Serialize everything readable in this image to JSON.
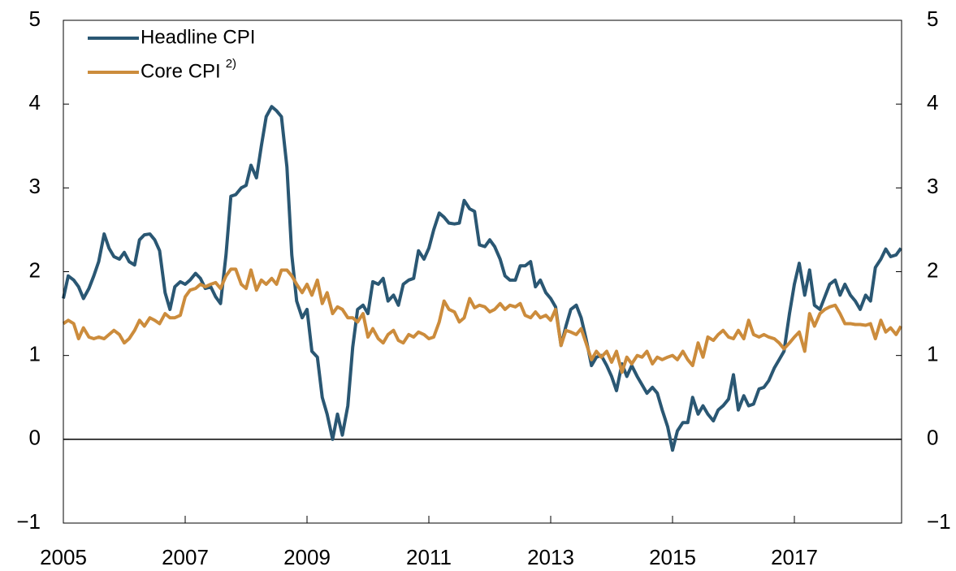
{
  "chart_data": {
    "type": "line",
    "x": [
      2005,
      2005.08,
      2005.17,
      2005.25,
      2005.33,
      2005.42,
      2005.5,
      2005.58,
      2005.67,
      2005.75,
      2005.83,
      2005.92,
      2006,
      2006.08,
      2006.17,
      2006.25,
      2006.33,
      2006.42,
      2006.5,
      2006.58,
      2006.67,
      2006.75,
      2006.83,
      2006.92,
      2007,
      2007.08,
      2007.17,
      2007.25,
      2007.33,
      2007.42,
      2007.5,
      2007.58,
      2007.67,
      2007.75,
      2007.83,
      2007.92,
      2008,
      2008.08,
      2008.17,
      2008.25,
      2008.33,
      2008.42,
      2008.5,
      2008.58,
      2008.67,
      2008.75,
      2008.83,
      2008.92,
      2009,
      2009.08,
      2009.17,
      2009.25,
      2009.33,
      2009.42,
      2009.5,
      2009.58,
      2009.67,
      2009.75,
      2009.83,
      2009.92,
      2010,
      2010.08,
      2010.17,
      2010.25,
      2010.33,
      2010.42,
      2010.5,
      2010.58,
      2010.67,
      2010.75,
      2010.83,
      2010.92,
      2011,
      2011.08,
      2011.17,
      2011.25,
      2011.33,
      2011.42,
      2011.5,
      2011.58,
      2011.67,
      2011.75,
      2011.83,
      2011.92,
      2012,
      2012.08,
      2012.17,
      2012.25,
      2012.33,
      2012.42,
      2012.5,
      2012.58,
      2012.67,
      2012.75,
      2012.83,
      2012.92,
      2013,
      2013.08,
      2013.17,
      2013.25,
      2013.33,
      2013.42,
      2013.5,
      2013.58,
      2013.67,
      2013.75,
      2013.83,
      2013.92,
      2014,
      2014.08,
      2014.17,
      2014.25,
      2014.33,
      2014.42,
      2014.5,
      2014.58,
      2014.67,
      2014.75,
      2014.83,
      2014.92,
      2015,
      2015.08,
      2015.17,
      2015.25,
      2015.33,
      2015.42,
      2015.5,
      2015.58,
      2015.67,
      2015.75,
      2015.83,
      2015.92,
      2016,
      2016.08,
      2016.17,
      2016.25,
      2016.33,
      2016.42,
      2016.5,
      2016.58,
      2016.67,
      2016.75,
      2016.83,
      2016.92,
      2017,
      2017.08,
      2017.17,
      2017.25,
      2017.33,
      2017.42,
      2017.5,
      2017.58,
      2017.67,
      2017.75,
      2017.83,
      2017.92,
      2018,
      2018.08,
      2018.17,
      2018.25,
      2018.33,
      2018.42,
      2018.5,
      2018.58,
      2018.67,
      2018.75
    ],
    "series": [
      {
        "name": "Headline CPI",
        "color": "#2a5773",
        "values": [
          1.68,
          1.95,
          1.9,
          1.82,
          1.68,
          1.8,
          1.95,
          2.12,
          2.45,
          2.28,
          2.18,
          2.15,
          2.23,
          2.12,
          2.08,
          2.38,
          2.44,
          2.45,
          2.38,
          2.25,
          1.75,
          1.55,
          1.82,
          1.88,
          1.85,
          1.9,
          1.98,
          1.92,
          1.8,
          1.82,
          1.7,
          1.62,
          2.2,
          2.9,
          2.92,
          3.0,
          3.03,
          3.27,
          3.12,
          3.5,
          3.85,
          3.97,
          3.92,
          3.85,
          3.25,
          2.2,
          1.65,
          1.45,
          1.55,
          1.05,
          0.98,
          0.5,
          0.3,
          0.0,
          0.3,
          0.05,
          0.4,
          1.1,
          1.55,
          1.6,
          1.5,
          1.88,
          1.85,
          1.92,
          1.65,
          1.72,
          1.6,
          1.85,
          1.9,
          1.92,
          2.25,
          2.15,
          2.28,
          2.5,
          2.7,
          2.65,
          2.58,
          2.57,
          2.58,
          2.85,
          2.75,
          2.72,
          2.32,
          2.3,
          2.38,
          2.3,
          2.15,
          1.95,
          1.9,
          1.9,
          2.07,
          2.07,
          2.12,
          1.82,
          1.9,
          1.75,
          1.68,
          1.58,
          1.12,
          1.35,
          1.55,
          1.6,
          1.45,
          1.2,
          0.88,
          0.98,
          1.0,
          0.88,
          0.75,
          0.58,
          0.9,
          0.75,
          0.88,
          0.75,
          0.65,
          0.55,
          0.62,
          0.55,
          0.35,
          0.15,
          -0.13,
          0.1,
          0.2,
          0.2,
          0.5,
          0.3,
          0.4,
          0.3,
          0.22,
          0.35,
          0.4,
          0.48,
          0.77,
          0.35,
          0.52,
          0.4,
          0.42,
          0.6,
          0.62,
          0.7,
          0.85,
          0.95,
          1.05,
          1.5,
          1.85,
          2.1,
          1.72,
          2.02,
          1.6,
          1.55,
          1.7,
          1.85,
          1.9,
          1.72,
          1.85,
          1.72,
          1.65,
          1.55,
          1.72,
          1.65,
          2.05,
          2.15,
          2.27,
          2.18,
          2.2,
          2.28
        ]
      },
      {
        "name": "Core CPI",
        "name_note": "2)",
        "color": "#cc8c3c",
        "values": [
          1.38,
          1.42,
          1.38,
          1.2,
          1.33,
          1.22,
          1.2,
          1.22,
          1.2,
          1.25,
          1.3,
          1.25,
          1.15,
          1.2,
          1.3,
          1.42,
          1.35,
          1.45,
          1.42,
          1.38,
          1.5,
          1.45,
          1.45,
          1.48,
          1.7,
          1.78,
          1.8,
          1.85,
          1.82,
          1.85,
          1.87,
          1.8,
          1.95,
          2.03,
          2.03,
          1.85,
          1.8,
          2.02,
          1.78,
          1.9,
          1.85,
          1.92,
          1.85,
          2.02,
          2.02,
          1.95,
          1.85,
          1.75,
          1.85,
          1.72,
          1.9,
          1.62,
          1.75,
          1.5,
          1.58,
          1.55,
          1.45,
          1.45,
          1.4,
          1.5,
          1.22,
          1.32,
          1.2,
          1.15,
          1.25,
          1.3,
          1.18,
          1.15,
          1.25,
          1.22,
          1.28,
          1.25,
          1.2,
          1.22,
          1.4,
          1.65,
          1.55,
          1.52,
          1.4,
          1.45,
          1.68,
          1.57,
          1.6,
          1.58,
          1.52,
          1.55,
          1.62,
          1.55,
          1.6,
          1.58,
          1.62,
          1.48,
          1.45,
          1.52,
          1.45,
          1.48,
          1.42,
          1.55,
          1.12,
          1.3,
          1.28,
          1.25,
          1.32,
          1.15,
          0.95,
          1.05,
          0.98,
          1.05,
          0.92,
          1.05,
          0.8,
          0.98,
          0.9,
          1.0,
          0.98,
          1.05,
          0.9,
          0.98,
          0.95,
          0.98,
          1.0,
          0.95,
          1.05,
          0.95,
          0.88,
          1.15,
          0.98,
          1.22,
          1.18,
          1.25,
          1.3,
          1.22,
          1.2,
          1.3,
          1.2,
          1.42,
          1.25,
          1.22,
          1.25,
          1.22,
          1.2,
          1.15,
          1.08,
          1.15,
          1.22,
          1.28,
          1.05,
          1.5,
          1.35,
          1.5,
          1.55,
          1.58,
          1.6,
          1.5,
          1.38,
          1.38,
          1.37,
          1.37,
          1.36,
          1.38,
          1.2,
          1.42,
          1.28,
          1.33,
          1.25,
          1.35
        ]
      }
    ],
    "xlim": [
      2005,
      2018.76
    ],
    "xticks": [
      2005,
      2007,
      2009,
      2011,
      2013,
      2015,
      2017
    ],
    "ylim": [
      -1,
      5
    ],
    "yticks": [
      {
        "value": -1,
        "label": "−1"
      },
      0,
      1,
      2,
      3,
      4,
      5
    ],
    "legend": "upper left",
    "grid": false
  }
}
